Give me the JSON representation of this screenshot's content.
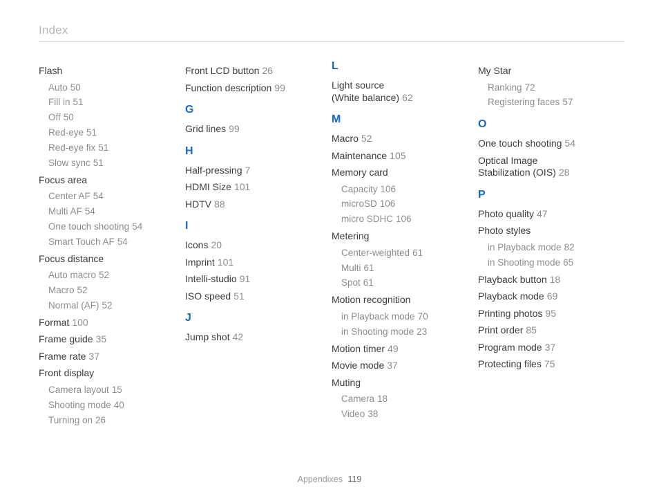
{
  "header": "Index",
  "footer_label": "Appendixes",
  "footer_page": "119",
  "columns": [
    {
      "groups": [
        {
          "letter": null,
          "items": [
            {
              "label": "Flash",
              "page": null,
              "subs": [
                {
                  "label": "Auto",
                  "page": "50"
                },
                {
                  "label": "Fill in",
                  "page": "51"
                },
                {
                  "label": "Off",
                  "page": "50"
                },
                {
                  "label": "Red-eye",
                  "page": "51"
                },
                {
                  "label": "Red-eye fix",
                  "page": "51"
                },
                {
                  "label": "Slow sync",
                  "page": "51"
                }
              ]
            },
            {
              "label": "Focus area",
              "page": null,
              "subs": [
                {
                  "label": "Center AF",
                  "page": "54"
                },
                {
                  "label": "Multi AF",
                  "page": "54"
                },
                {
                  "label": "One touch shooting",
                  "page": "54"
                },
                {
                  "label": "Smart Touch AF",
                  "page": "54"
                }
              ]
            },
            {
              "label": "Focus distance",
              "page": null,
              "subs": [
                {
                  "label": "Auto macro",
                  "page": "52"
                },
                {
                  "label": "Macro",
                  "page": "52"
                },
                {
                  "label": "Normal (AF)",
                  "page": "52"
                }
              ]
            },
            {
              "label": "Format",
              "page": "100",
              "subs": []
            },
            {
              "label": "Frame guide",
              "page": "35",
              "subs": []
            },
            {
              "label": "Frame rate",
              "page": "37",
              "subs": []
            },
            {
              "label": "Front display",
              "page": null,
              "subs": [
                {
                  "label": "Camera layout",
                  "page": "15"
                },
                {
                  "label": "Shooting mode",
                  "page": "40"
                },
                {
                  "label": "Turning on",
                  "page": "26"
                }
              ]
            }
          ]
        }
      ]
    },
    {
      "groups": [
        {
          "letter": null,
          "items": [
            {
              "label": "Front LCD button",
              "page": "26",
              "subs": []
            },
            {
              "label": "Function description",
              "page": "99",
              "subs": []
            }
          ]
        },
        {
          "letter": "G",
          "items": [
            {
              "label": "Grid lines",
              "page": "99",
              "subs": []
            }
          ]
        },
        {
          "letter": "H",
          "items": [
            {
              "label": "Half-pressing",
              "page": "7",
              "subs": []
            },
            {
              "label": "HDMI Size",
              "page": "101",
              "subs": []
            },
            {
              "label": "HDTV",
              "page": "88",
              "subs": []
            }
          ]
        },
        {
          "letter": "I",
          "items": [
            {
              "label": "Icons",
              "page": "20",
              "subs": []
            },
            {
              "label": "Imprint",
              "page": "101",
              "subs": []
            },
            {
              "label": "Intelli-studio",
              "page": "91",
              "subs": []
            },
            {
              "label": "ISO speed",
              "page": "51",
              "subs": []
            }
          ]
        },
        {
          "letter": "J",
          "items": [
            {
              "label": "Jump shot",
              "page": "42",
              "subs": []
            }
          ]
        }
      ]
    },
    {
      "groups": [
        {
          "letter": "L",
          "items": [
            {
              "label": "Light source\n(White balance)",
              "page": "62",
              "subs": []
            }
          ]
        },
        {
          "letter": "M",
          "items": [
            {
              "label": "Macro",
              "page": "52",
              "subs": []
            },
            {
              "label": "Maintenance",
              "page": "105",
              "subs": []
            },
            {
              "label": "Memory card",
              "page": null,
              "subs": [
                {
                  "label": "Capacity",
                  "page": "106"
                },
                {
                  "label": "microSD",
                  "page": "106"
                },
                {
                  "label": "micro SDHC",
                  "page": "106"
                }
              ]
            },
            {
              "label": "Metering",
              "page": null,
              "subs": [
                {
                  "label": "Center-weighted",
                  "page": "61"
                },
                {
                  "label": "Multi",
                  "page": "61"
                },
                {
                  "label": "Spot",
                  "page": "61"
                }
              ]
            },
            {
              "label": "Motion recognition",
              "page": null,
              "subs": [
                {
                  "label": "in Playback mode",
                  "page": "70"
                },
                {
                  "label": "in Shooting mode",
                  "page": "23"
                }
              ]
            },
            {
              "label": "Motion timer",
              "page": "49",
              "subs": []
            },
            {
              "label": "Movie mode",
              "page": "37",
              "subs": []
            },
            {
              "label": "Muting",
              "page": null,
              "subs": [
                {
                  "label": "Camera",
                  "page": "18"
                },
                {
                  "label": "Video",
                  "page": "38"
                }
              ]
            }
          ]
        }
      ]
    },
    {
      "groups": [
        {
          "letter": null,
          "items": [
            {
              "label": "My Star",
              "page": null,
              "subs": [
                {
                  "label": "Ranking",
                  "page": "72"
                },
                {
                  "label": "Registering faces",
                  "page": "57"
                }
              ]
            }
          ]
        },
        {
          "letter": "O",
          "items": [
            {
              "label": "One touch shooting",
              "page": "54",
              "subs": []
            },
            {
              "label": "Optical Image\nStabilization (OIS)",
              "page": "28",
              "subs": []
            }
          ]
        },
        {
          "letter": "P",
          "items": [
            {
              "label": "Photo quality",
              "page": "47",
              "subs": []
            },
            {
              "label": "Photo styles",
              "page": null,
              "subs": [
                {
                  "label": "in Playback mode",
                  "page": "82"
                },
                {
                  "label": "in Shooting mode",
                  "page": "65"
                }
              ]
            },
            {
              "label": "Playback button",
              "page": "18",
              "subs": []
            },
            {
              "label": "Playback mode",
              "page": "69",
              "subs": []
            },
            {
              "label": "Printing photos",
              "page": "95",
              "subs": []
            },
            {
              "label": "Print order",
              "page": "85",
              "subs": []
            },
            {
              "label": "Program mode",
              "page": "37",
              "subs": []
            },
            {
              "label": "Protecting files",
              "page": "75",
              "subs": []
            }
          ]
        }
      ]
    }
  ]
}
